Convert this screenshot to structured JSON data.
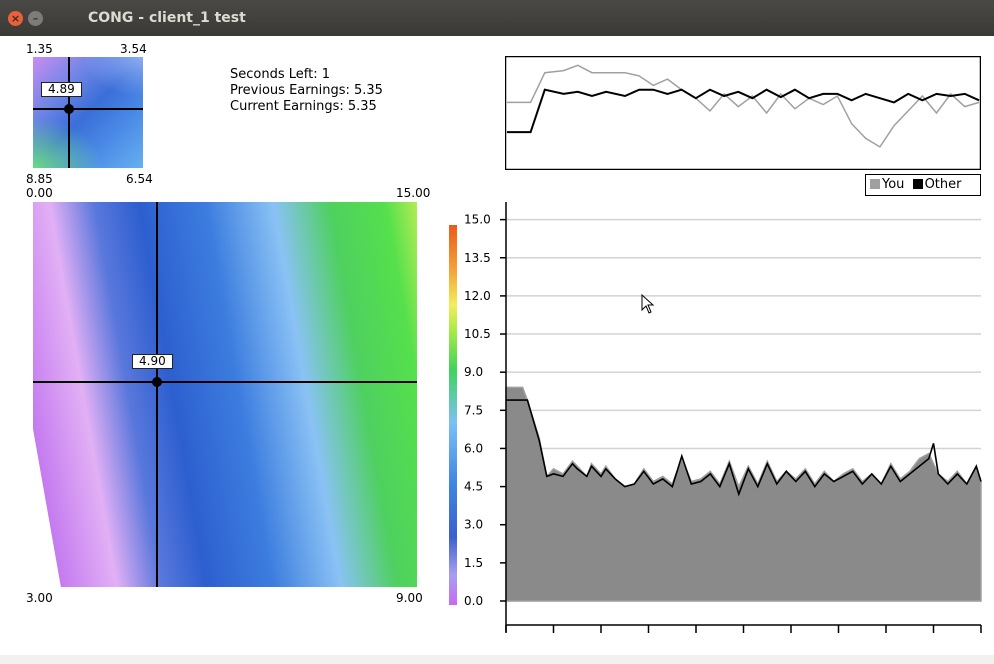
{
  "window": {
    "title": "CONG - client_1 test",
    "close_glyph": "×",
    "minimize_glyph": "–"
  },
  "info": {
    "seconds_left": "Seconds Left: 1",
    "previous_earnings": "Previous Earnings: 5.35",
    "current_earnings": "Current Earnings: 5.35"
  },
  "small_map": {
    "top_left": "1.35",
    "top_right": "3.54",
    "bottom_left": "8.85",
    "bottom_right": "6.54",
    "value": "4.89"
  },
  "strategy_map": {
    "top_left": "0.00",
    "top_right": "15.00",
    "bottom_left": "3.00",
    "bottom_right": "9.00",
    "value": "4.90"
  },
  "legend": {
    "you": "You",
    "other": "Other",
    "you_color": "#a0a0a0",
    "other_color": "#000000"
  },
  "colors": {
    "you_fill": "#8a8a8a",
    "you_line": "#a0a0a0",
    "other_line": "#000000",
    "grid": "#d3d3d3"
  },
  "chart_data": {
    "type": "area",
    "y_ticks": [
      "0.0",
      "1.5",
      "3.0",
      "4.5",
      "6.0",
      "7.5",
      "9.0",
      "10.5",
      "12.0",
      "13.5",
      "15.0"
    ],
    "ylim": [
      0,
      15.3
    ],
    "xlim": [
      0,
      100
    ],
    "x_tick_count": 11,
    "series": [
      {
        "name": "You",
        "x": [
          0,
          3.5,
          4.5,
          7,
          8.6,
          10,
          12,
          14,
          15,
          17,
          18,
          20,
          21,
          23,
          25,
          27,
          29,
          31,
          33,
          35,
          37,
          39,
          41,
          43,
          45,
          47,
          49,
          51,
          53,
          55,
          57,
          59,
          61,
          63,
          65,
          67,
          69,
          71,
          73,
          75,
          77,
          79,
          81,
          83,
          85,
          87,
          89,
          90,
          91,
          93,
          95,
          97,
          99,
          100
        ],
        "y": [
          8.4,
          8.4,
          7.9,
          6.4,
          4.9,
          5.2,
          5.0,
          5.5,
          5.3,
          4.9,
          5.4,
          5.0,
          5.3,
          4.8,
          4.5,
          4.6,
          5.2,
          4.7,
          4.9,
          4.6,
          5.6,
          4.7,
          4.8,
          5.1,
          4.6,
          5.5,
          4.5,
          5.3,
          4.6,
          5.5,
          4.7,
          5.1,
          4.8,
          5.2,
          4.6,
          5.1,
          4.7,
          5.0,
          5.2,
          4.7,
          5.0,
          4.6,
          5.4,
          4.8,
          5.1,
          5.6,
          5.8,
          5.4,
          5.0,
          4.7,
          5.1,
          4.6,
          5.3,
          4.7
        ]
      },
      {
        "name": "Other",
        "x": [
          0,
          3.5,
          4.5,
          7,
          8.6,
          10,
          12,
          14,
          15,
          17,
          18,
          20,
          21,
          23,
          25,
          27,
          29,
          31,
          33,
          35,
          37,
          39,
          41,
          43,
          45,
          47,
          49,
          51,
          53,
          55,
          57,
          59,
          61,
          63,
          65,
          67,
          69,
          71,
          73,
          75,
          77,
          79,
          81,
          83,
          85,
          87,
          89,
          90,
          91,
          93,
          95,
          97,
          99,
          100
        ],
        "y": [
          7.9,
          7.9,
          7.9,
          6.3,
          4.9,
          5.0,
          4.9,
          5.4,
          5.2,
          4.9,
          5.3,
          4.9,
          5.2,
          4.8,
          4.5,
          4.6,
          5.1,
          4.6,
          4.8,
          4.5,
          5.7,
          4.6,
          4.7,
          5.0,
          4.5,
          5.4,
          4.2,
          5.2,
          4.5,
          5.4,
          4.6,
          5.1,
          4.7,
          5.1,
          4.5,
          5.0,
          4.7,
          4.9,
          5.1,
          4.6,
          5.0,
          4.6,
          5.3,
          4.7,
          5.0,
          5.3,
          5.6,
          6.2,
          5.0,
          4.6,
          5.0,
          4.6,
          5.3,
          4.7
        ]
      }
    ]
  },
  "history_chart": {
    "series": [
      {
        "name": "You",
        "x": [
          0,
          5,
          8,
          12,
          15,
          18,
          21,
          25,
          28,
          31,
          34,
          37,
          40,
          43,
          46,
          49,
          52,
          55,
          58,
          61,
          64,
          67,
          70,
          73,
          76,
          79,
          82,
          85,
          88,
          91,
          94,
          97,
          100
        ],
        "y": [
          6.0,
          6.0,
          8.8,
          9.0,
          9.5,
          8.8,
          8.8,
          8.8,
          8.5,
          7.6,
          8.2,
          7.2,
          6.4,
          5.2,
          6.8,
          5.6,
          6.6,
          5.0,
          6.8,
          5.4,
          6.4,
          5.8,
          6.6,
          4.0,
          2.6,
          1.8,
          3.8,
          5.2,
          6.6,
          5.0,
          6.8,
          5.6,
          6.0
        ]
      },
      {
        "name": "Other",
        "x": [
          0,
          5,
          8,
          12,
          15,
          18,
          21,
          25,
          28,
          31,
          34,
          37,
          40,
          43,
          46,
          49,
          52,
          55,
          58,
          61,
          64,
          67,
          70,
          73,
          76,
          79,
          82,
          85,
          88,
          91,
          94,
          97,
          100
        ],
        "y": [
          3.2,
          3.2,
          7.2,
          6.8,
          7.0,
          6.6,
          7.0,
          6.6,
          7.2,
          7.2,
          6.8,
          7.2,
          6.4,
          7.2,
          6.6,
          7.0,
          6.4,
          7.2,
          6.5,
          7.2,
          6.4,
          6.8,
          6.8,
          6.2,
          6.8,
          6.4,
          6.0,
          6.8,
          6.2,
          6.8,
          6.6,
          6.8,
          6.2
        ]
      }
    ],
    "ylim": [
      0,
      10
    ]
  }
}
